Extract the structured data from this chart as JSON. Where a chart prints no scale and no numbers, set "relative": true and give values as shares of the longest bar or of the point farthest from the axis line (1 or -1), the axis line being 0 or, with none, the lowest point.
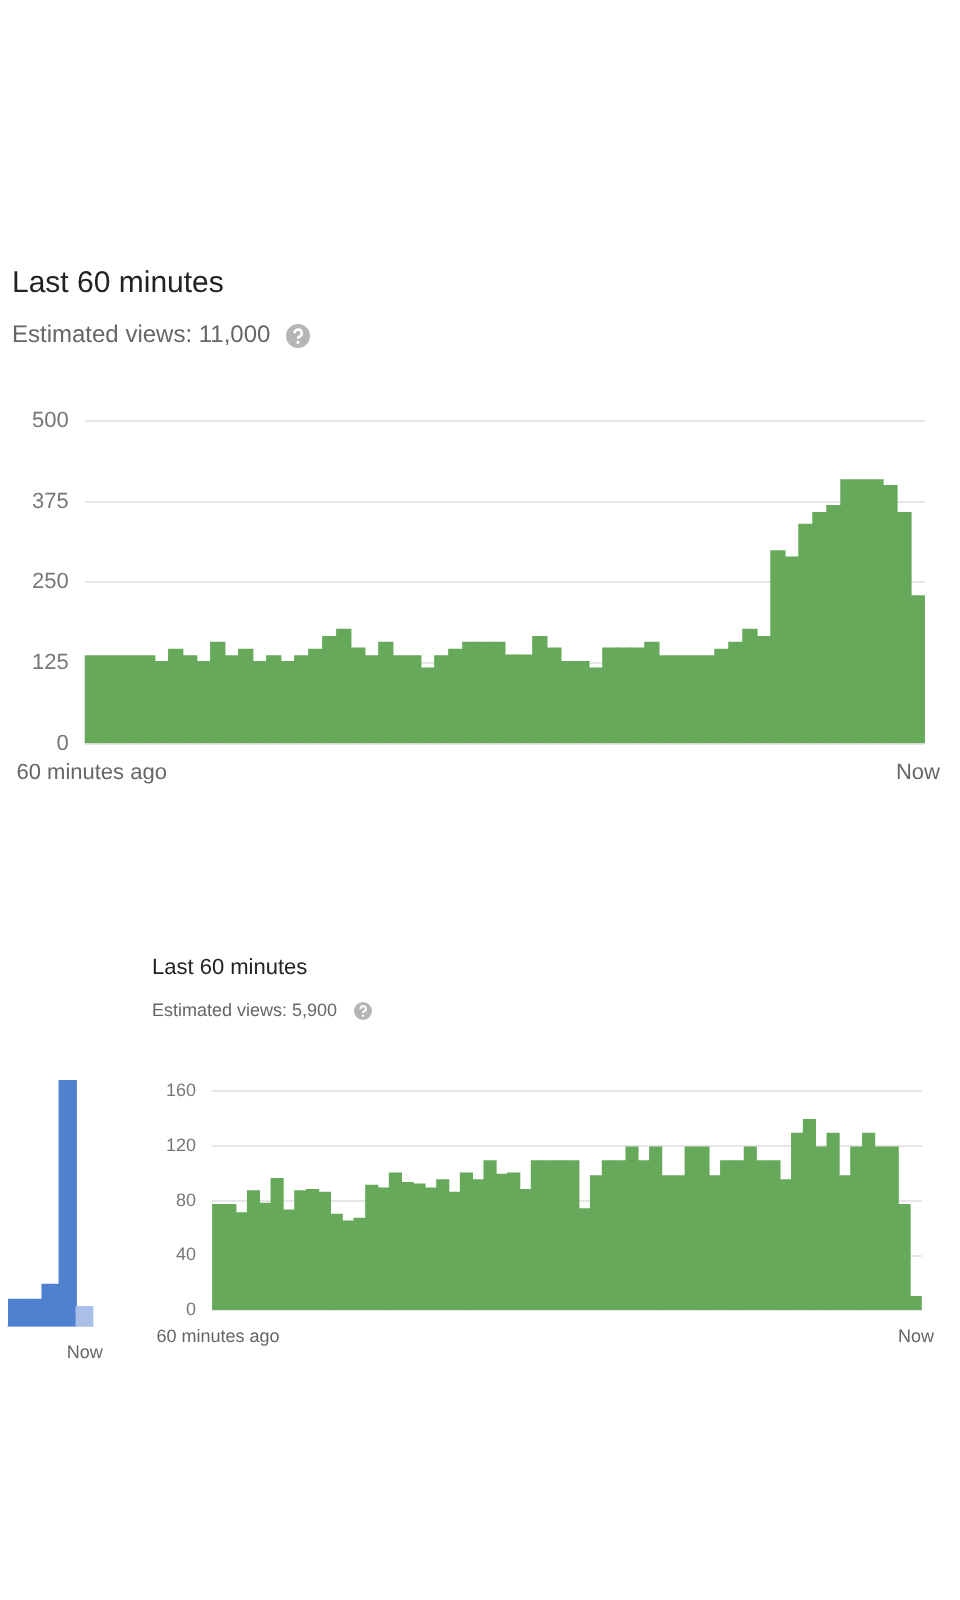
{
  "chart_data": [
    {
      "type": "bar",
      "title": "Last 60 minutes",
      "subtitle": "Estimated views: 11,000",
      "categories": [
        "60 minutes ago",
        null,
        null,
        null,
        null,
        null,
        null,
        null,
        null,
        null,
        null,
        null,
        null,
        null,
        null,
        null,
        null,
        null,
        null,
        null,
        null,
        null,
        null,
        null,
        null,
        null,
        null,
        null,
        null,
        null,
        null,
        null,
        null,
        null,
        null,
        null,
        null,
        null,
        null,
        null,
        null,
        null,
        null,
        null,
        null,
        null,
        null,
        null,
        null,
        null,
        null,
        null,
        null,
        null,
        null,
        null,
        null,
        null,
        null,
        "Now"
      ],
      "values": [
        136,
        136,
        136,
        136,
        136,
        127,
        146,
        136,
        127,
        157,
        136,
        146,
        127,
        136,
        127,
        136,
        146,
        166,
        177,
        148,
        136,
        157,
        136,
        136,
        117,
        136,
        146,
        157,
        157,
        157,
        137,
        137,
        166,
        148,
        127,
        127,
        117,
        148,
        148,
        148,
        157,
        136,
        136,
        136,
        136,
        146,
        157,
        177,
        166,
        299,
        289,
        340,
        358,
        369,
        409,
        409,
        409,
        400,
        358,
        229
      ],
      "color": "#67a95b",
      "ylim": [
        0,
        500
      ],
      "yticks": [
        0,
        125,
        250,
        375,
        500
      ],
      "grid": "y"
    },
    {
      "type": "bar",
      "relative": true,
      "categories": [
        null,
        null,
        null,
        null,
        "Now"
      ],
      "values": [
        0.11,
        0.11,
        0.17,
        1,
        0.08
      ],
      "colors": [
        "#4f81cf",
        "#4f81cf",
        "#4f81cf",
        "#4f81cf",
        "#a9bfe8"
      ]
    },
    {
      "type": "bar",
      "title": "Last 60 minutes",
      "subtitle": "Estimated views: 5,900",
      "categories": [
        "60 minutes ago",
        null,
        null,
        null,
        null,
        null,
        null,
        null,
        null,
        null,
        null,
        null,
        null,
        null,
        null,
        null,
        null,
        null,
        null,
        null,
        null,
        null,
        null,
        null,
        null,
        null,
        null,
        null,
        null,
        null,
        null,
        null,
        null,
        null,
        null,
        null,
        null,
        null,
        null,
        null,
        null,
        null,
        null,
        null,
        null,
        null,
        null,
        null,
        null,
        null,
        null,
        null,
        null,
        null,
        null,
        null,
        null,
        null,
        null,
        "Now"
      ],
      "values": [
        77,
        77,
        71,
        87,
        78,
        96,
        73,
        87,
        88,
        86,
        70,
        65,
        67,
        91,
        89,
        100,
        93,
        92,
        89,
        95,
        86,
        100,
        95,
        109,
        99,
        100,
        88,
        109,
        109,
        109,
        109,
        74,
        98,
        109,
        109,
        119,
        109,
        119,
        98,
        98,
        119,
        119,
        98,
        109,
        109,
        119,
        109,
        109,
        95,
        129,
        139,
        119,
        129,
        98,
        119,
        129,
        119,
        119,
        77,
        10
      ],
      "color": "#67a95b",
      "ylim": [
        0,
        160
      ],
      "yticks": [
        0,
        40,
        80,
        120,
        160
      ],
      "grid": "y"
    }
  ]
}
